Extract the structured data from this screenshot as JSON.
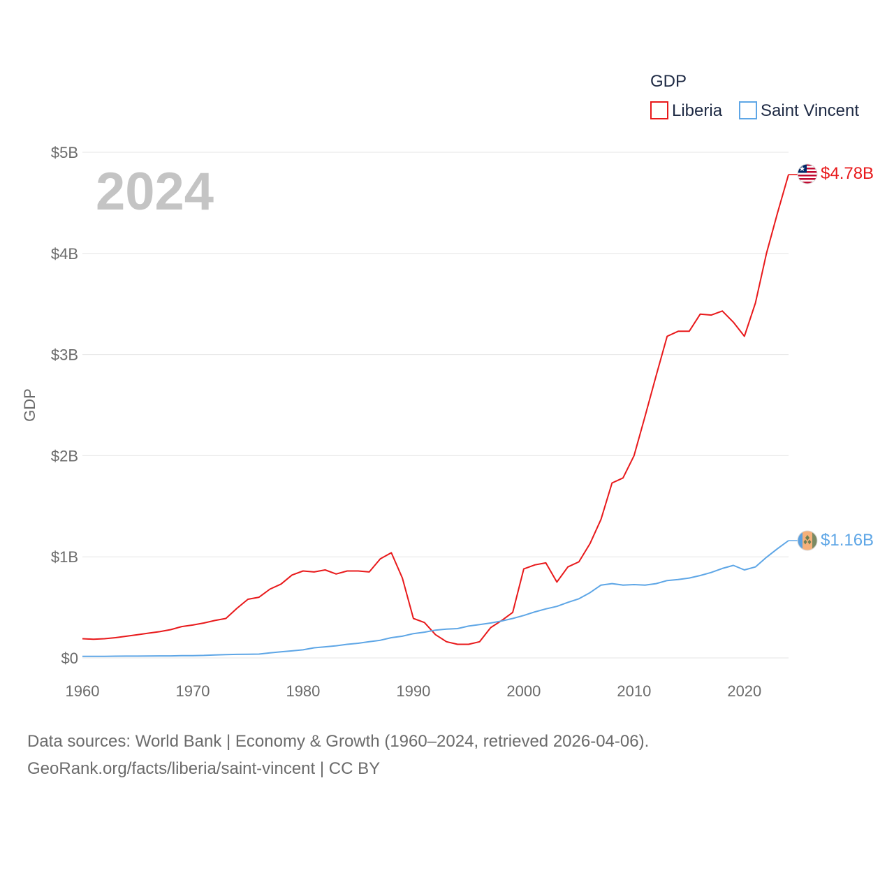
{
  "chart_data": {
    "type": "line",
    "title": "GDP",
    "xlabel": "",
    "ylabel": "GDP",
    "xlim": [
      1960,
      2024
    ],
    "ylim": [
      0,
      5
    ],
    "x_ticks": [
      1960,
      1970,
      1980,
      1990,
      2000,
      2010,
      2020
    ],
    "x_tick_labels": [
      "1960",
      "1970",
      "1980",
      "1990",
      "2000",
      "2010",
      "2020"
    ],
    "y_ticks": [
      0,
      1,
      2,
      3,
      4,
      5
    ],
    "y_tick_labels": [
      "$0",
      "$1B",
      "$2B",
      "$3B",
      "$4B",
      "$5B"
    ],
    "grid": true,
    "legend_position": "top-right",
    "year_label": "2024",
    "x": [
      1960,
      1961,
      1962,
      1963,
      1964,
      1965,
      1966,
      1967,
      1968,
      1969,
      1970,
      1971,
      1972,
      1973,
      1974,
      1975,
      1976,
      1977,
      1978,
      1979,
      1980,
      1981,
      1982,
      1983,
      1984,
      1985,
      1986,
      1987,
      1988,
      1989,
      1990,
      1991,
      1992,
      1993,
      1994,
      1995,
      1996,
      1997,
      1998,
      1999,
      2000,
      2001,
      2002,
      2003,
      2004,
      2005,
      2006,
      2007,
      2008,
      2009,
      2010,
      2011,
      2012,
      2013,
      2014,
      2015,
      2016,
      2017,
      2018,
      2019,
      2020,
      2021,
      2022,
      2023,
      2024
    ],
    "series": [
      {
        "name": "Liberia",
        "color": "#e8191b",
        "end_label": "$4.78B",
        "flag": "liberia-flag",
        "values": [
          0.19,
          0.185,
          0.19,
          0.2,
          0.215,
          0.23,
          0.245,
          0.26,
          0.28,
          0.31,
          0.325,
          0.345,
          0.37,
          0.39,
          0.49,
          0.58,
          0.6,
          0.68,
          0.73,
          0.82,
          0.86,
          0.85,
          0.87,
          0.83,
          0.86,
          0.86,
          0.85,
          0.98,
          1.04,
          0.79,
          0.39,
          0.35,
          0.23,
          0.16,
          0.135,
          0.135,
          0.16,
          0.3,
          0.37,
          0.45,
          0.88,
          0.92,
          0.94,
          0.75,
          0.9,
          0.95,
          1.13,
          1.37,
          1.73,
          1.78,
          2.0,
          2.39,
          2.79,
          3.18,
          3.23,
          3.23,
          3.4,
          3.39,
          3.43,
          3.32,
          3.18,
          3.51,
          4.0,
          4.4,
          4.78
        ]
      },
      {
        "name": "Saint Vincent",
        "color": "#5ea6e6",
        "end_label": "$1.16B",
        "flag": "saint-vincent-flag",
        "values": [
          0.015,
          0.015,
          0.016,
          0.017,
          0.018,
          0.018,
          0.019,
          0.02,
          0.02,
          0.022,
          0.023,
          0.025,
          0.03,
          0.033,
          0.035,
          0.036,
          0.038,
          0.05,
          0.06,
          0.07,
          0.08,
          0.1,
          0.11,
          0.12,
          0.135,
          0.145,
          0.16,
          0.175,
          0.2,
          0.215,
          0.24,
          0.255,
          0.275,
          0.285,
          0.29,
          0.315,
          0.33,
          0.345,
          0.365,
          0.39,
          0.42,
          0.455,
          0.485,
          0.51,
          0.55,
          0.585,
          0.645,
          0.72,
          0.735,
          0.72,
          0.725,
          0.72,
          0.735,
          0.765,
          0.775,
          0.79,
          0.815,
          0.845,
          0.885,
          0.915,
          0.87,
          0.9,
          0.995,
          1.08,
          1.16
        ]
      }
    ]
  },
  "legend": {
    "title": "GDP",
    "items": [
      "Liberia",
      "Saint Vincent"
    ]
  },
  "footer": {
    "source_line1": "Data sources: World Bank | Economy & Growth (1960–2024, retrieved 2026-04-06).",
    "source_line2": "GeoRank.org/facts/liberia/saint-vincent | CC BY"
  }
}
